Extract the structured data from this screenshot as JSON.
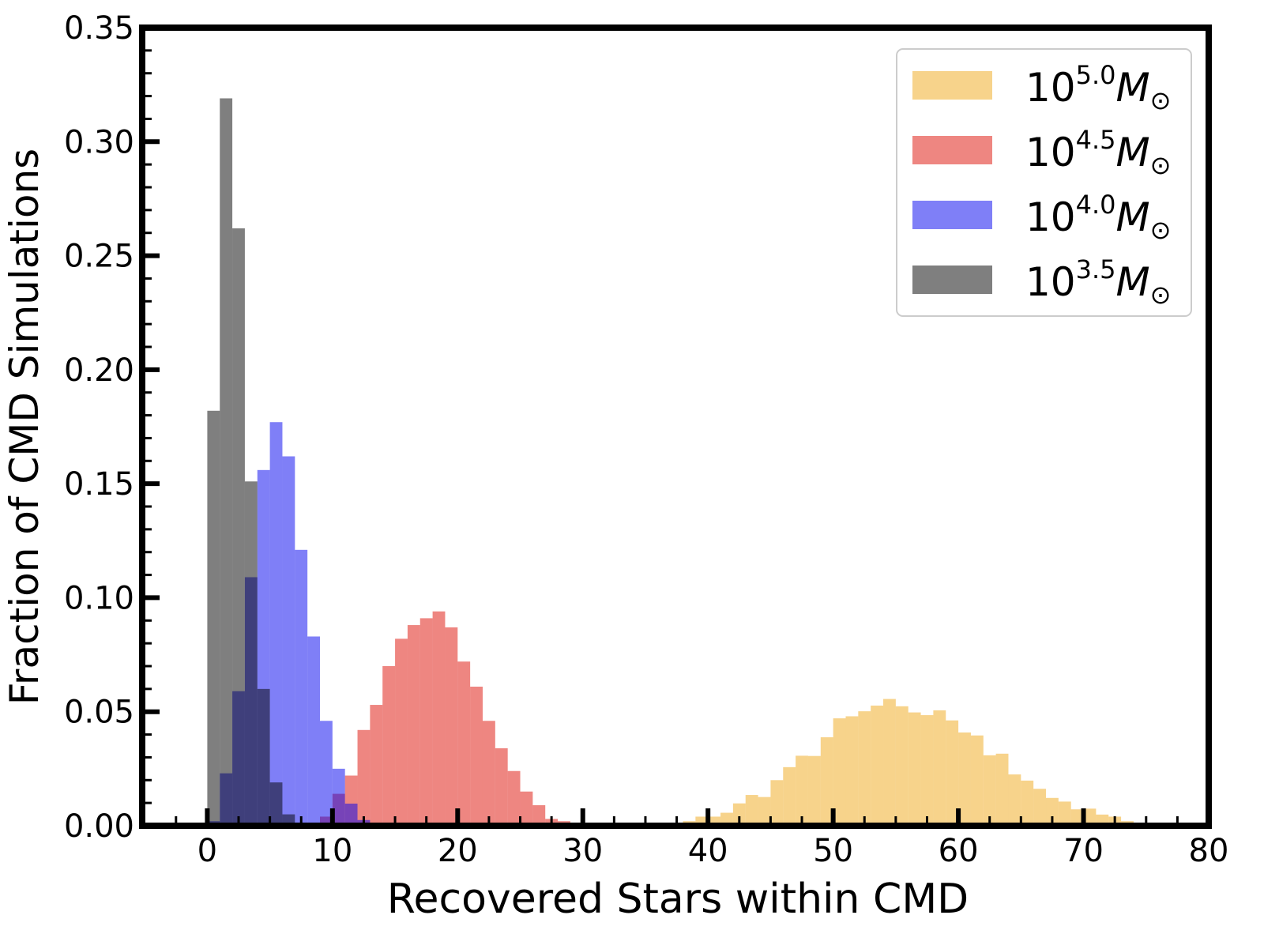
{
  "chart_data": {
    "type": "bar",
    "subtype": "overlaid-histogram",
    "title": "",
    "xlabel": "Recovered Stars within CMD",
    "ylabel": "Fraction of CMD Simulations",
    "xlim": [
      -5.2,
      80
    ],
    "ylim": [
      0,
      0.35
    ],
    "xticks": [
      "0",
      "10",
      "20",
      "30",
      "40",
      "50",
      "60",
      "70",
      "80"
    ],
    "yticks": [
      "0.00",
      "0.05",
      "0.10",
      "0.15",
      "0.20",
      "0.25",
      "0.30",
      "0.35"
    ],
    "grid": false,
    "legend_position": "top-right",
    "bin_width": 1,
    "series": [
      {
        "name": "10^{5.0} M_sun",
        "legend": {
          "base": "10",
          "exp": "5.0",
          "sym": "M",
          "sub": "⊙"
        },
        "color": "#f0a818",
        "bin_start": 37,
        "values": [
          0.001,
          0.002,
          0.004,
          0.004,
          0.0057,
          0.0098,
          0.0135,
          0.0126,
          0.02,
          0.0257,
          0.0307,
          0.0306,
          0.0388,
          0.0471,
          0.048,
          0.0502,
          0.0527,
          0.0556,
          0.0524,
          0.0497,
          0.0485,
          0.0506,
          0.0462,
          0.0409,
          0.0396,
          0.0309,
          0.0316,
          0.0225,
          0.0198,
          0.0162,
          0.0122,
          0.0106,
          0.0072,
          0.0075,
          0.0049,
          0.004,
          0.002,
          0.001
        ]
      },
      {
        "name": "10^{4.5} M_sun",
        "legend": {
          "base": "10",
          "exp": "4.5",
          "sym": "M",
          "sub": "⊙"
        },
        "color": "#dd0d03",
        "bin_start": 8,
        "values": [
          0.001,
          0.004,
          0.014,
          0.022,
          0.042,
          0.053,
          0.07,
          0.082,
          0.088,
          0.091,
          0.094,
          0.087,
          0.072,
          0.061,
          0.046,
          0.034,
          0.024,
          0.015,
          0.009,
          0.003,
          0.002,
          0.001
        ]
      },
      {
        "name": "10^{4.0} M_sun",
        "legend": {
          "base": "10",
          "exp": "4.0",
          "sym": "M",
          "sub": "⊙"
        },
        "color": "#0000f0",
        "bin_start": 0,
        "values": [
          0.002,
          0.023,
          0.059,
          0.109,
          0.156,
          0.177,
          0.162,
          0.121,
          0.083,
          0.046,
          0.025,
          0.0097,
          0.0025,
          0.001
        ]
      },
      {
        "name": "10^{3.5} M_sun",
        "legend": {
          "base": "10",
          "exp": "3.5",
          "sym": "M",
          "sub": "⊙"
        },
        "color": "#000000",
        "bin_start": 0,
        "values": [
          0.182,
          0.319,
          0.262,
          0.151,
          0.06,
          0.019,
          0.005,
          0.001
        ]
      }
    ]
  }
}
